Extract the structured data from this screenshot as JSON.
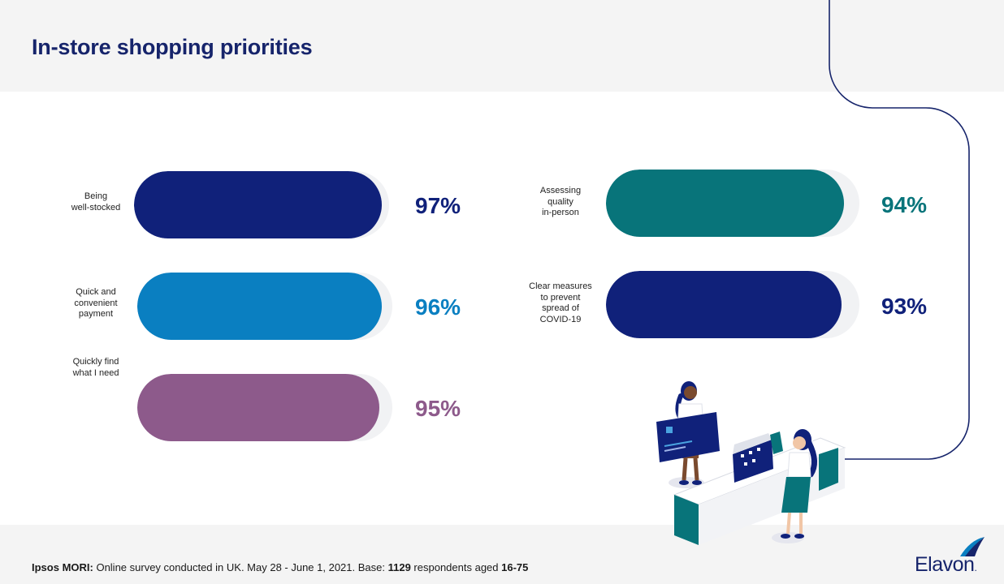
{
  "title": "In-store shopping priorities",
  "chart_data": {
    "type": "bar",
    "categories": [
      "Being well-stocked",
      "Quick and convenient payment",
      "Quickly find what I need",
      "Assessing quality in-person",
      "Clear measures to prevent spread of COVID-19"
    ],
    "values": [
      97,
      96,
      95,
      94,
      93
    ],
    "value_labels": [
      "97%",
      "96%",
      "95%",
      "94%",
      "93%"
    ],
    "ylim": [
      0,
      100
    ],
    "bars": [
      {
        "label_lines": [
          "Being",
          "well-stocked"
        ],
        "value": 97,
        "value_label": "97%",
        "color": "#10217a"
      },
      {
        "label_lines": [
          "Quick and",
          "convenient",
          "payment"
        ],
        "value": 96,
        "value_label": "96%",
        "color": "#0a7fc1"
      },
      {
        "label_lines": [
          "Quickly find",
          "what I need"
        ],
        "value": 95,
        "value_label": "95%",
        "color": "#8d5a8b"
      },
      {
        "label_lines": [
          "Assessing",
          "quality",
          "in-person"
        ],
        "value": 94,
        "value_label": "94%",
        "color": "#08747a"
      },
      {
        "label_lines": [
          "Clear measures",
          "to prevent",
          "spread of",
          "COVID-19"
        ],
        "value": 93,
        "value_label": "93%",
        "color": "#10217a"
      }
    ]
  },
  "footnote": {
    "source": "Ipsos MORI:",
    "text1": " Online survey conducted in UK. May 28 - June 1, 2021. Base: ",
    "base": "1129",
    "text2": " respondents aged ",
    "ages": "16-75"
  },
  "logo": {
    "text": "Elavon",
    "suffix": "."
  },
  "colors": {
    "navy": "#16246b",
    "blue": "#0a7fc1",
    "purple": "#8d5a8b",
    "teal": "#08747a"
  }
}
